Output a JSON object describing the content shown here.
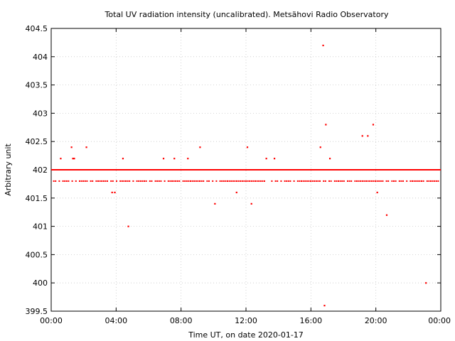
{
  "chart_data": {
    "type": "scatter",
    "title": "Total UV radiation intensity (uncalibrated). Metsähovi Radio Observatory",
    "xlabel": "Time UT, on date 2020-01-17",
    "ylabel": "Arbitrary unit",
    "xlim": [
      "00:00",
      "24:00"
    ],
    "ylim": [
      399.5,
      404.5
    ],
    "x_ticks": [
      "00:00",
      "04:00",
      "08:00",
      "12:00",
      "16:00",
      "20:00",
      "00:00"
    ],
    "y_ticks": [
      "399.5",
      "400",
      "400.5",
      "401",
      "401.5",
      "402",
      "402.5",
      "403",
      "403.5",
      "404",
      "404.5"
    ],
    "grid": true,
    "legend": "none",
    "marker_color": "#ff0000",
    "series": [
      {
        "baseline_bands": [
          {
            "y": 402.0,
            "from": "00:00",
            "to": "24:00",
            "density": "continuous"
          },
          {
            "y": 401.8,
            "from": "00:00",
            "to": "24:00",
            "density": "frequent"
          }
        ],
        "points": [
          {
            "x": "00:35",
            "y": 402.2
          },
          {
            "x": "01:15",
            "y": 402.4
          },
          {
            "x": "01:20",
            "y": 402.2
          },
          {
            "x": "01:25",
            "y": 402.2
          },
          {
            "x": "02:10",
            "y": 402.4
          },
          {
            "x": "03:45",
            "y": 401.6
          },
          {
            "x": "03:55",
            "y": 401.6
          },
          {
            "x": "04:25",
            "y": 402.2
          },
          {
            "x": "04:45",
            "y": 401.0
          },
          {
            "x": "06:55",
            "y": 402.2
          },
          {
            "x": "07:35",
            "y": 402.2
          },
          {
            "x": "08:25",
            "y": 402.2
          },
          {
            "x": "09:10",
            "y": 402.4
          },
          {
            "x": "10:05",
            "y": 401.4
          },
          {
            "x": "11:25",
            "y": 401.6
          },
          {
            "x": "12:05",
            "y": 402.4
          },
          {
            "x": "12:20",
            "y": 401.4
          },
          {
            "x": "13:15",
            "y": 402.2
          },
          {
            "x": "13:45",
            "y": 402.2
          },
          {
            "x": "16:35",
            "y": 402.4
          },
          {
            "x": "16:45",
            "y": 404.2
          },
          {
            "x": "16:50",
            "y": 399.6
          },
          {
            "x": "16:55",
            "y": 402.8
          },
          {
            "x": "17:10",
            "y": 402.2
          },
          {
            "x": "19:10",
            "y": 402.6
          },
          {
            "x": "19:30",
            "y": 402.6
          },
          {
            "x": "19:50",
            "y": 402.8
          },
          {
            "x": "20:05",
            "y": 401.6
          },
          {
            "x": "20:40",
            "y": 401.2
          },
          {
            "x": "23:05",
            "y": 400.0
          }
        ]
      }
    ]
  }
}
